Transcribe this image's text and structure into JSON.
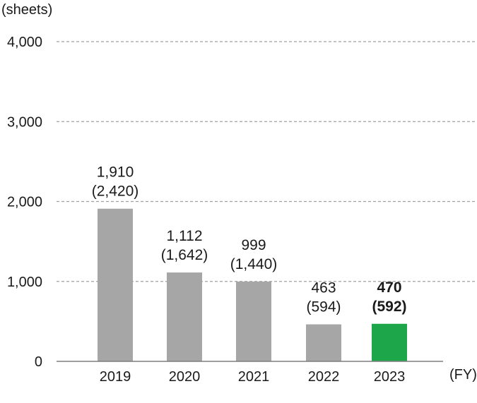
{
  "chart_data": {
    "type": "bar",
    "y_unit_label": "(sheets)",
    "x_unit_label": "(FY)",
    "ylim": [
      0,
      4000
    ],
    "y_ticks": [
      {
        "value": 0,
        "label": "0"
      },
      {
        "value": 1000,
        "label": "1,000"
      },
      {
        "value": 2000,
        "label": "2,000"
      },
      {
        "value": 3000,
        "label": "3,000"
      },
      {
        "value": 4000,
        "label": "4,000"
      }
    ],
    "grid": "dashed horizontal",
    "categories": [
      "2019",
      "2020",
      "2021",
      "2022",
      "2023"
    ],
    "values": [
      1910,
      1112,
      999,
      463,
      470
    ],
    "secondary_values": [
      2420,
      1642,
      1440,
      594,
      592
    ],
    "value_labels": [
      "1,910",
      "1,112",
      "999",
      "463",
      "470"
    ],
    "secondary_labels": [
      "(2,420)",
      "(1,642)",
      "(1,440)",
      "(594)",
      "(592)"
    ],
    "highlight_index": 4,
    "colors": {
      "bar": "#a6a6a6",
      "highlight": "#1ea64a",
      "grid": "#a0a0a0",
      "axis": "#7f7f7f"
    }
  }
}
